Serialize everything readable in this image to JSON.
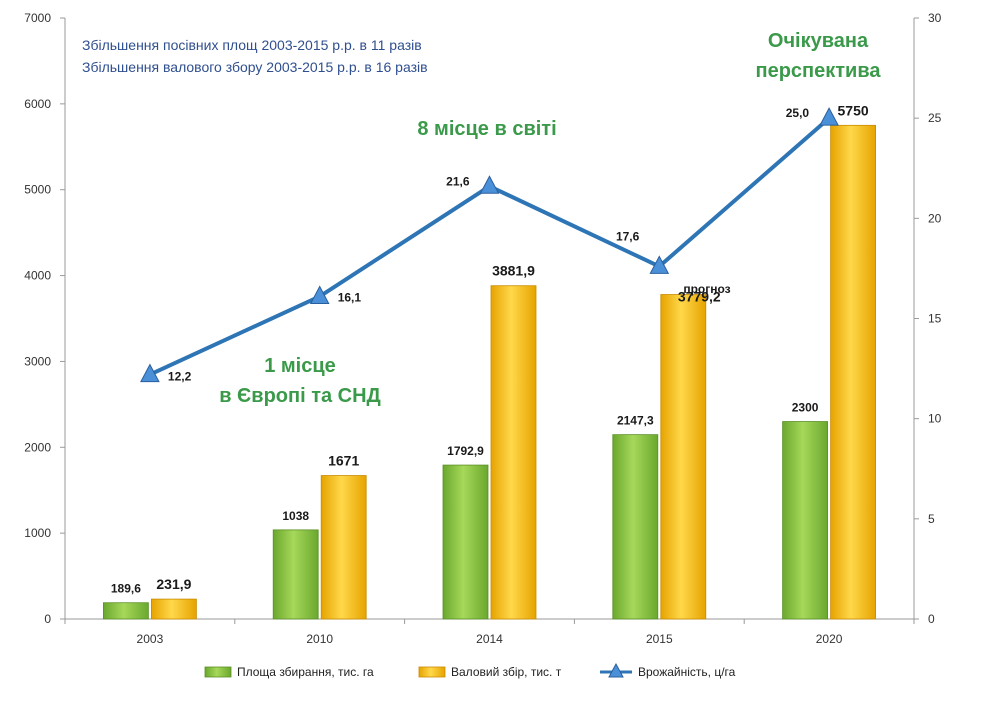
{
  "chart_data": {
    "type": "bar",
    "categories": [
      "2003",
      "2010",
      "2014",
      "2015",
      "2020"
    ],
    "series": [
      {
        "name": "Площа збирання, тис. га",
        "kind": "bar",
        "axis": "left",
        "color": "#8cc63f",
        "values": [
          189.6,
          1038,
          1792.9,
          2147.3,
          2300
        ],
        "labels": [
          "189,6",
          "1038",
          "1792,9",
          "2147,3",
          "2300"
        ]
      },
      {
        "name": "Валовий збір, тис. т",
        "kind": "bar",
        "axis": "left",
        "color": "#ffc20e",
        "values": [
          231.9,
          1671,
          3881.9,
          3779.2,
          5750
        ],
        "labels": [
          "231,9",
          "1671",
          "3881,9",
          "3779,2",
          "5750"
        ]
      },
      {
        "name": "Врожайність, ц/га",
        "kind": "line",
        "axis": "right",
        "color": "#2e75b6",
        "values": [
          12.2,
          16.1,
          21.6,
          17.6,
          25.0
        ],
        "labels": [
          "12,2",
          "16,1",
          "21,6",
          "17,6",
          "25,0"
        ]
      }
    ],
    "left_axis": {
      "min": 0,
      "max": 7000,
      "step": 1000
    },
    "right_axis": {
      "min": 0,
      "max": 30,
      "step": 5
    },
    "legend_position": "bottom",
    "annotations": {
      "info_line1": "Збільшення посівних площ 2003-2015 р.р. в 11 разів",
      "info_line2": "Збільшення валового збору 2003-2015 р.р. в 16 разів",
      "place_world": "8 місце в світі",
      "place_europe_1": "1 місце",
      "place_europe_2": "в Європі та СНД",
      "outlook_1": "Очікувана",
      "outlook_2": "перспектива",
      "forecast": "прогноз"
    }
  }
}
